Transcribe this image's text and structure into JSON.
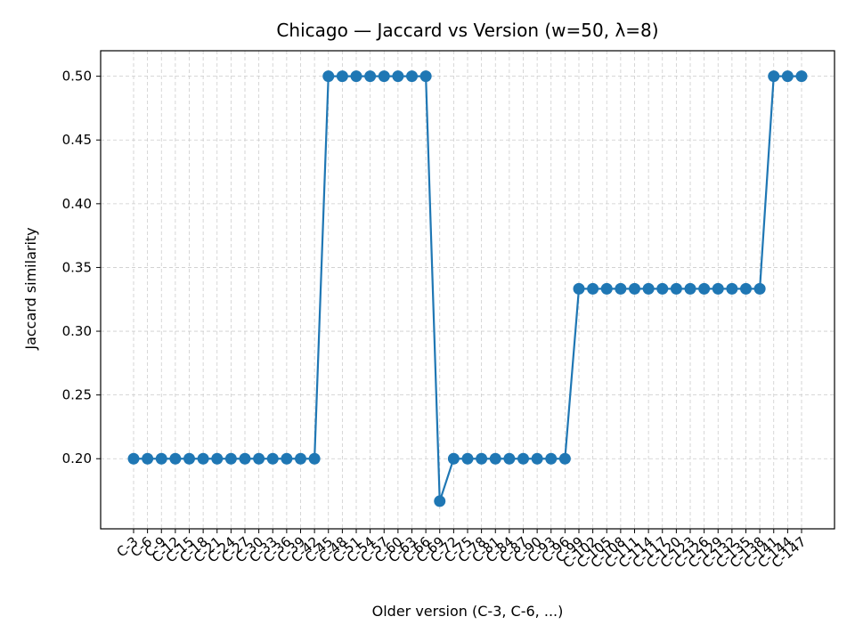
{
  "chart_data": {
    "type": "line",
    "title": "Chicago — Jaccard vs Version (w=50, λ=8)",
    "xlabel": "Older version (C-3, C-6, ...)",
    "ylabel": "Jaccard similarity",
    "ylim": [
      0.145,
      0.52
    ],
    "yticks": [
      0.2,
      0.25,
      0.3,
      0.35,
      0.4,
      0.45,
      0.5
    ],
    "grid": true,
    "colors": {
      "series": "#1f77b4",
      "grid": "#cccccc"
    },
    "categories": [
      "C-3",
      "C-6",
      "C-9",
      "C-12",
      "C-15",
      "C-18",
      "C-21",
      "C-24",
      "C-27",
      "C-30",
      "C-33",
      "C-36",
      "C-39",
      "C-42",
      "C-45",
      "C-48",
      "C-51",
      "C-54",
      "C-57",
      "C-60",
      "C-63",
      "C-66",
      "C-69",
      "C-72",
      "C-75",
      "C-78",
      "C-81",
      "C-84",
      "C-87",
      "C-90",
      "C-93",
      "C-96",
      "C-99",
      "C-102",
      "C-105",
      "C-108",
      "C-111",
      "C-114",
      "C-117",
      "C-120",
      "C-123",
      "C-126",
      "C-129",
      "C-132",
      "C-135",
      "C-138",
      "C-141",
      "C-144",
      "C-147"
    ],
    "values": [
      0.2,
      0.2,
      0.2,
      0.2,
      0.2,
      0.2,
      0.2,
      0.2,
      0.2,
      0.2,
      0.2,
      0.2,
      0.2,
      0.2,
      0.5,
      0.5,
      0.5,
      0.5,
      0.5,
      0.5,
      0.5,
      0.5,
      0.1667,
      0.2,
      0.2,
      0.2,
      0.2,
      0.2,
      0.2,
      0.2,
      0.2,
      0.2,
      0.3333,
      0.3333,
      0.3333,
      0.3333,
      0.3333,
      0.3333,
      0.3333,
      0.3333,
      0.3333,
      0.3333,
      0.3333,
      0.3333,
      0.3333,
      0.3333,
      0.5,
      0.5,
      0.5
    ]
  }
}
